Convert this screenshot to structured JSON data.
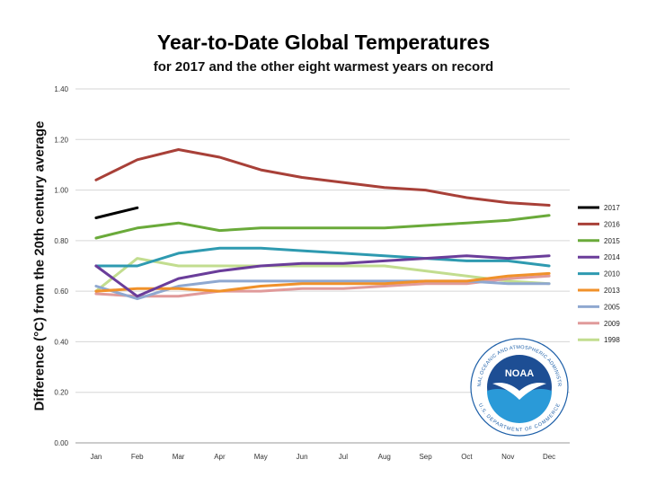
{
  "chart_data": {
    "type": "line",
    "title": "Year-to-Date Global Temperatures",
    "subtitle": "for 2017 and the other eight warmest years on record",
    "xlabel": "",
    "ylabel": "Difference (°C) from the 20th century average",
    "categories": [
      "Jan",
      "Feb",
      "Mar",
      "Apr",
      "May",
      "Jun",
      "Jul",
      "Aug",
      "Sep",
      "Oct",
      "Nov",
      "Dec"
    ],
    "ylim": [
      0,
      1.4
    ],
    "yticks": [
      "0.00",
      "0.20",
      "0.40",
      "0.60",
      "0.80",
      "1.00",
      "1.20",
      "1.40"
    ],
    "grid": true,
    "legend_position": "right",
    "series": [
      {
        "name": "2017",
        "color": "#000000",
        "values": [
          0.89,
          0.93,
          null,
          null,
          null,
          null,
          null,
          null,
          null,
          null,
          null,
          null
        ]
      },
      {
        "name": "2016",
        "color": "#a84038",
        "values": [
          1.04,
          1.12,
          1.16,
          1.13,
          1.08,
          1.05,
          1.03,
          1.01,
          1.0,
          0.97,
          0.95,
          0.94
        ]
      },
      {
        "name": "2015",
        "color": "#6aaa3a",
        "values": [
          0.81,
          0.85,
          0.87,
          0.84,
          0.85,
          0.85,
          0.85,
          0.85,
          0.86,
          0.87,
          0.88,
          0.9
        ]
      },
      {
        "name": "2014",
        "color": "#6a3d9a",
        "values": [
          0.7,
          0.58,
          0.65,
          0.68,
          0.7,
          0.71,
          0.71,
          0.72,
          0.73,
          0.74,
          0.73,
          0.74
        ]
      },
      {
        "name": "2010",
        "color": "#2e9ab0",
        "values": [
          0.7,
          0.7,
          0.75,
          0.77,
          0.77,
          0.76,
          0.75,
          0.74,
          0.73,
          0.72,
          0.72,
          0.7
        ]
      },
      {
        "name": "2013",
        "color": "#f0912a",
        "values": [
          0.6,
          0.61,
          0.61,
          0.6,
          0.62,
          0.63,
          0.63,
          0.63,
          0.64,
          0.64,
          0.66,
          0.67
        ]
      },
      {
        "name": "2005",
        "color": "#8fa8d0",
        "values": [
          0.62,
          0.57,
          0.62,
          0.64,
          0.64,
          0.64,
          0.64,
          0.64,
          0.64,
          0.64,
          0.63,
          0.63
        ]
      },
      {
        "name": "2009",
        "color": "#e09a9a",
        "values": [
          0.59,
          0.58,
          0.58,
          0.6,
          0.6,
          0.61,
          0.61,
          0.62,
          0.63,
          0.63,
          0.65,
          0.66
        ]
      },
      {
        "name": "1998",
        "color": "#c2dd8f",
        "values": [
          0.6,
          0.73,
          0.7,
          0.7,
          0.7,
          0.7,
          0.7,
          0.7,
          0.68,
          0.66,
          0.64,
          0.63
        ]
      }
    ]
  },
  "logo": {
    "center_text": "NOAA",
    "top_arc_text": "NATIONAL OCEANIC AND ATMOSPHERIC ADMINISTRATION",
    "bottom_arc_text": "U.S. DEPARTMENT OF COMMERCE",
    "colors": {
      "ring": "#ffffff",
      "sky": "#1d4e94",
      "sea": "#2a9ad8",
      "bird": "#ffffff"
    }
  }
}
